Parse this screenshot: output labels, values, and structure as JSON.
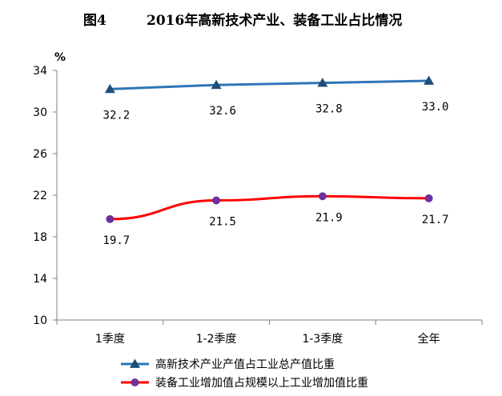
{
  "header": {
    "figure_label": "图4",
    "title": "2016年高新技术产业、装备工业占比情况"
  },
  "chart_data": {
    "type": "line",
    "title": "2016年高新技术产业、装备工业占比情况",
    "xlabel": "",
    "ylabel": "%",
    "categories": [
      "1季度",
      "1-2季度",
      "1-3季度",
      "全年"
    ],
    "ylim": [
      10,
      34
    ],
    "yticks": [
      10,
      14,
      18,
      22,
      26,
      30,
      34
    ],
    "grid": false,
    "legend_position": "bottom",
    "series": [
      {
        "name": "高新技术产业产值占工业总产值比重",
        "values": [
          32.2,
          32.6,
          32.8,
          33.0
        ],
        "labels": [
          "32.2",
          "32.6",
          "32.8",
          "33.0"
        ],
        "color": "#2e75b6",
        "marker": "triangle"
      },
      {
        "name": "装备工业增加值占规模以上工业增加值比重",
        "values": [
          19.7,
          21.5,
          21.9,
          21.7
        ],
        "labels": [
          "19.7",
          "21.5",
          "21.9",
          "21.7"
        ],
        "color": "#ff0000",
        "marker": "circle",
        "marker_color": "#7030a0"
      }
    ]
  }
}
